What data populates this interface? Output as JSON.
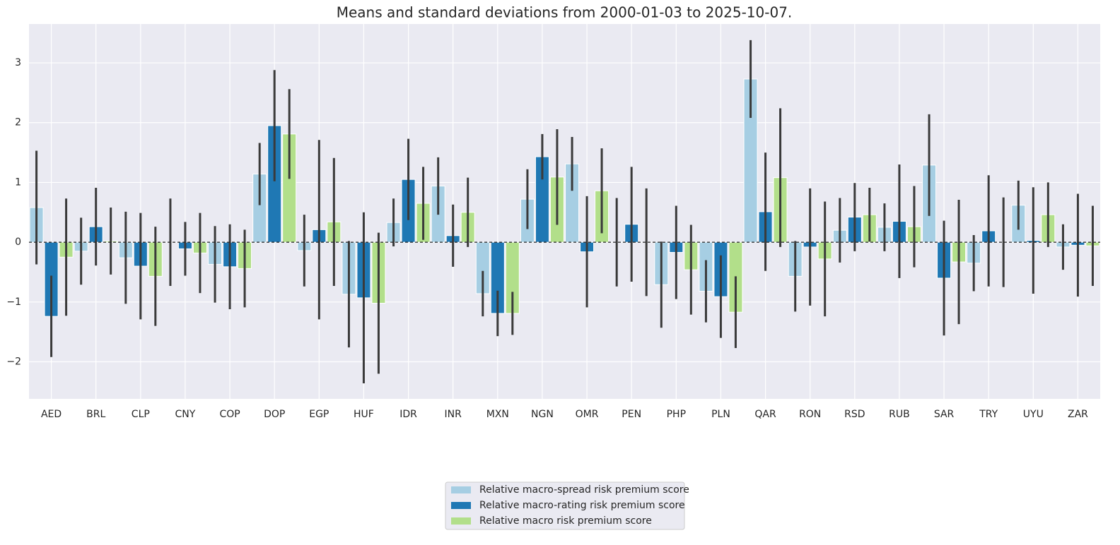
{
  "chart_data": {
    "type": "bar",
    "title": "Means and standard deviations from 2000-01-03 to 2025-10-07.",
    "categories": [
      "AED",
      "BRL",
      "CLP",
      "CNY",
      "COP",
      "DOP",
      "EGP",
      "HUF",
      "IDR",
      "INR",
      "MXN",
      "NGN",
      "OMR",
      "PEN",
      "PHP",
      "PLN",
      "QAR",
      "RON",
      "RSD",
      "RUB",
      "SAR",
      "TRY",
      "UYU",
      "ZAR"
    ],
    "series": [
      {
        "name": "Relative macro-spread risk premium score",
        "color": "#a6cee3",
        "values": [
          0.58,
          -0.15,
          -0.26,
          0.0,
          -0.37,
          1.14,
          -0.14,
          -0.87,
          0.33,
          0.94,
          -0.86,
          0.72,
          1.31,
          0.0,
          -0.71,
          -0.82,
          2.73,
          -0.57,
          0.2,
          0.25,
          1.29,
          -0.35,
          0.62,
          -0.08
        ],
        "errors": [
          0.95,
          0.56,
          0.77,
          0.73,
          0.64,
          0.52,
          0.6,
          0.89,
          0.4,
          0.48,
          0.38,
          0.5,
          0.45,
          0.74,
          0.72,
          0.52,
          0.65,
          0.59,
          0.54,
          0.4,
          0.85,
          0.47,
          0.41,
          0.38
        ]
      },
      {
        "name": "Relative macro-rating risk premium score",
        "color": "#1f78b4",
        "values": [
          -1.24,
          0.26,
          -0.4,
          -0.11,
          -0.41,
          1.95,
          0.21,
          -0.93,
          1.05,
          0.11,
          -1.19,
          1.43,
          -0.16,
          0.3,
          -0.17,
          -0.91,
          0.51,
          -0.08,
          0.42,
          0.35,
          -0.6,
          0.19,
          0.03,
          -0.05
        ],
        "errors": [
          0.68,
          0.65,
          0.89,
          0.45,
          0.71,
          0.93,
          1.5,
          1.43,
          0.68,
          0.52,
          0.38,
          0.38,
          0.93,
          0.96,
          0.78,
          0.69,
          0.99,
          0.98,
          0.57,
          0.95,
          0.96,
          0.93,
          0.89,
          0.86
        ]
      },
      {
        "name": "Relative macro risk premium score",
        "color": "#b2df8a",
        "values": [
          -0.25,
          0.02,
          -0.57,
          -0.18,
          -0.44,
          1.81,
          0.34,
          -1.02,
          0.65,
          0.5,
          -1.19,
          1.09,
          0.86,
          0.0,
          -0.46,
          -1.17,
          1.08,
          -0.28,
          0.46,
          0.26,
          -0.33,
          0.0,
          0.46,
          -0.06
        ],
        "errors": [
          0.98,
          0.56,
          0.83,
          0.67,
          0.65,
          0.75,
          1.07,
          1.18,
          0.61,
          0.58,
          0.36,
          0.8,
          0.71,
          0.9,
          0.75,
          0.6,
          1.16,
          0.96,
          0.45,
          0.68,
          1.04,
          0.75,
          0.54,
          0.67
        ]
      }
    ],
    "ylim": [
      -2.62,
      3.65
    ],
    "yticks": [
      {
        "value": -2,
        "label": "−2"
      },
      {
        "value": -1,
        "label": "−1"
      },
      0,
      1,
      2,
      3
    ],
    "grid": true,
    "zero_line": true,
    "legend": "bottom"
  }
}
